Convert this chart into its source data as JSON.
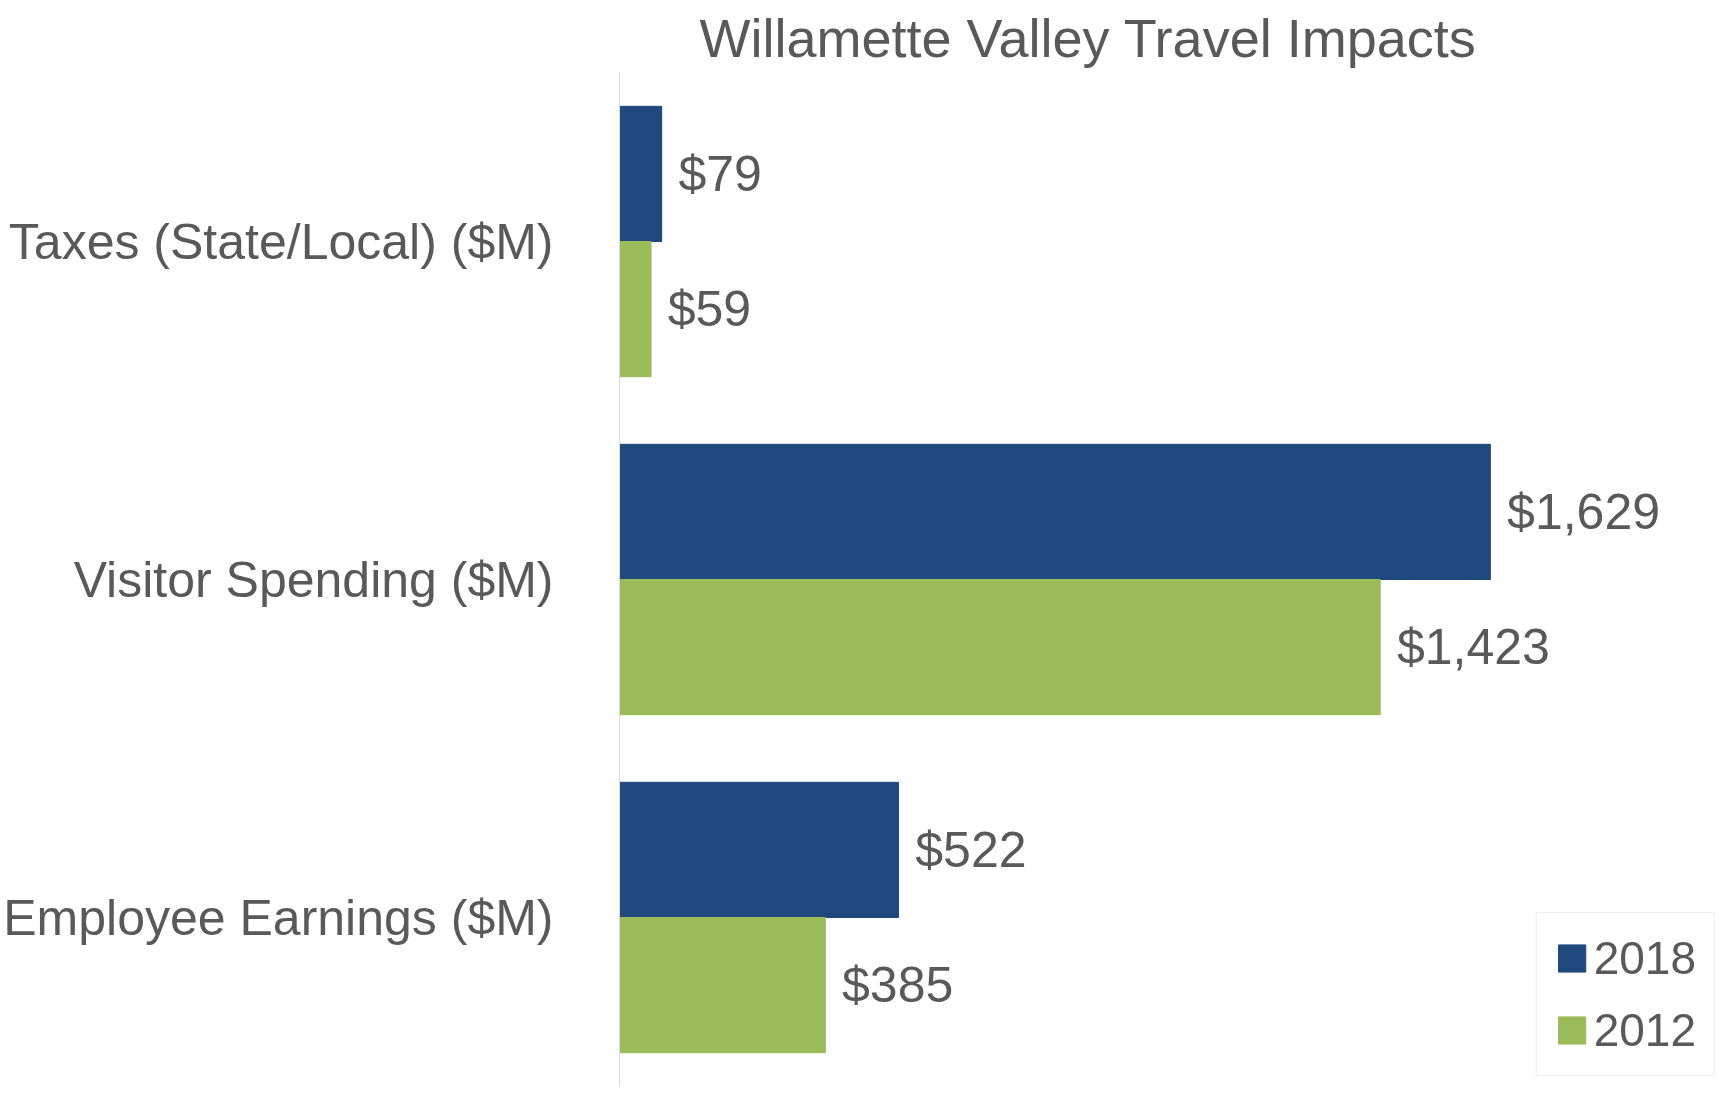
{
  "chart_data": {
    "type": "bar",
    "orientation": "horizontal",
    "title": "Willamette Valley Travel Impacts",
    "categories": [
      "Taxes (State/Local) ($M)",
      "Visitor Spending ($M)",
      "Employee Earnings ($M)"
    ],
    "series": [
      {
        "name": "2018",
        "color": "#1f497d",
        "values": [
          79,
          1629,
          522
        ],
        "value_labels": [
          "$79",
          "$1,629",
          "$522"
        ]
      },
      {
        "name": "2012",
        "color": "#9bbb59",
        "values": [
          59,
          1423,
          385
        ],
        "value_labels": [
          "$59",
          "$1,423",
          "$385"
        ]
      }
    ],
    "tick_labels": "y",
    "grid": false,
    "legend": "bottom right"
  }
}
